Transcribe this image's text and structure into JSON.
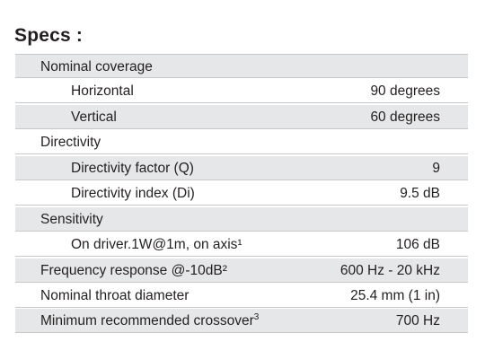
{
  "title": "Specs :",
  "rows": [
    {
      "label": "Nominal coverage",
      "value": ""
    },
    {
      "label": "Horizontal",
      "value": "90 degrees"
    },
    {
      "label": "Vertical",
      "value": "60 degrees"
    },
    {
      "label": "Directivity",
      "value": ""
    },
    {
      "label": "Directivity factor (Q)",
      "value": "9"
    },
    {
      "label": "Directivity index (Di)",
      "value": "9.5 dB"
    },
    {
      "label": "Sensitivity",
      "value": ""
    },
    {
      "label": "On driver.1W@1m, on axis¹",
      "value": "106 dB"
    },
    {
      "label": "Frequency response @-10dB²",
      "value": "600 Hz - 20 kHz"
    },
    {
      "label": "Nominal throat diameter",
      "value": "25.4 mm (1 in)"
    },
    {
      "label": "Minimum recommended crossover",
      "sup": "3",
      "value": "700 Hz"
    }
  ],
  "colors": {
    "shaded_row": "#e6e7e8",
    "row_divider": "#c7c8ca",
    "text": "#231f20"
  }
}
